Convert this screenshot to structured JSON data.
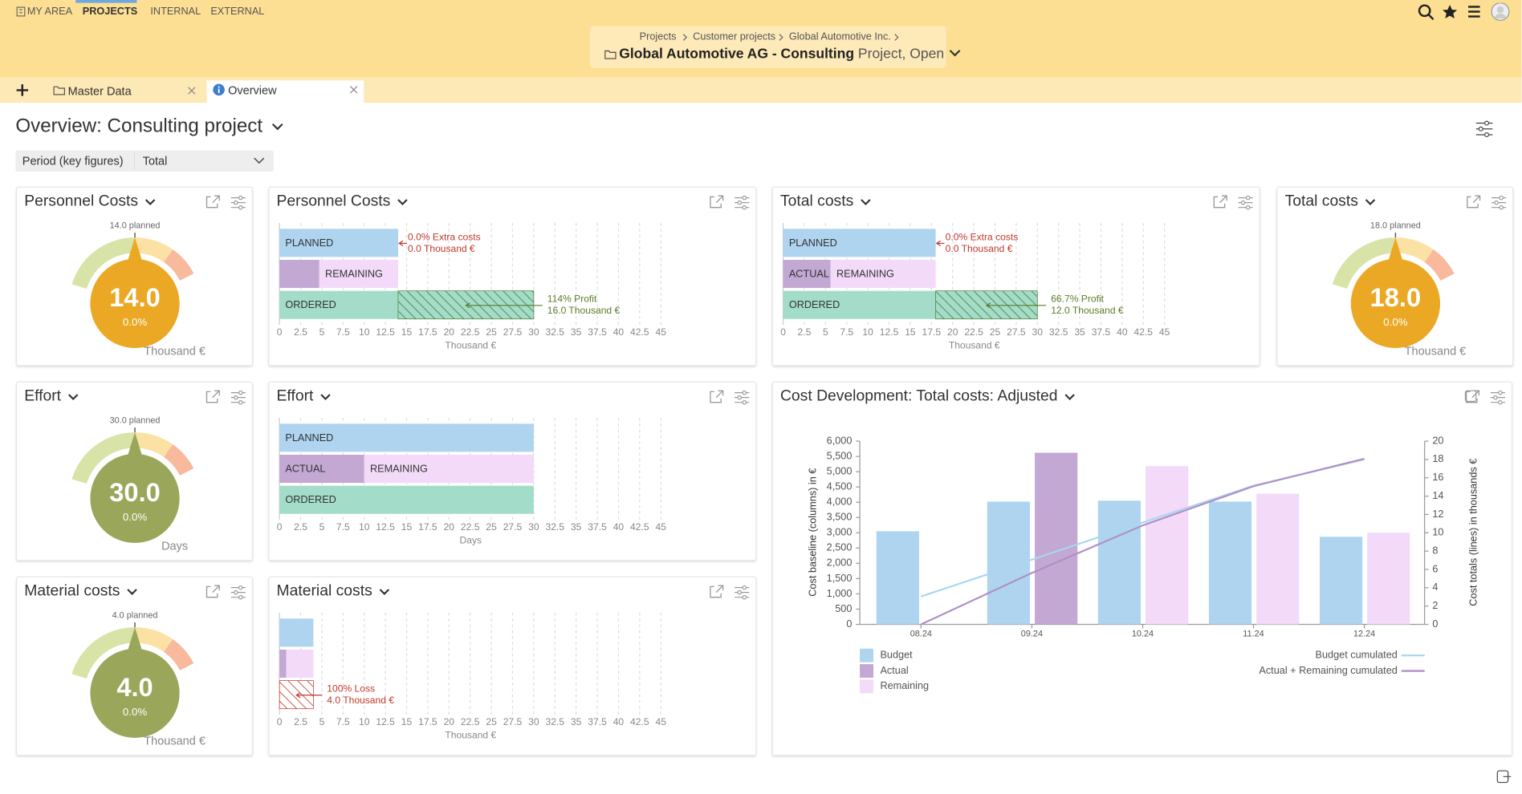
{
  "nav": {
    "items": [
      "MY AREA",
      "PROJECTS",
      "INTERNAL",
      "EXTERNAL"
    ],
    "active": 1
  },
  "breadcrumb": {
    "path": [
      "Projects",
      "Customer projects",
      "Global Automotive Inc."
    ],
    "title": "Global Automotive AG - Consulting",
    "status": "Project, Open"
  },
  "tabs": {
    "items": [
      "Master Data",
      "Overview"
    ],
    "active": 1
  },
  "page": {
    "title": "Overview: Consulting project",
    "filter_label": "Period (key figures)",
    "filter_value": "Total"
  },
  "gauges": [
    {
      "title": "Personnel Costs",
      "planned": 14,
      "planned_label": "14.0 planned",
      "value": 14,
      "value_label": "14.0",
      "percent_label": "0.0%",
      "unit": "Thousand €",
      "color": "#eba824"
    },
    {
      "title": "Total costs",
      "planned": 18,
      "planned_label": "18.0 planned",
      "value": 18,
      "value_label": "18.0",
      "percent_label": "0.0%",
      "unit": "Thousand €",
      "color": "#eba824"
    },
    {
      "title": "Effort",
      "planned": 30,
      "planned_label": "30.0 planned",
      "value": 30,
      "value_label": "30.0",
      "percent_label": "0.0%",
      "unit": "Days",
      "color": "#9aa65a"
    },
    {
      "title": "Material costs",
      "planned": 4,
      "planned_label": "4.0 planned",
      "value": 4,
      "value_label": "4.0",
      "percent_label": "0.0%",
      "unit": "Thousand €",
      "color": "#9aa65a"
    }
  ],
  "bar_widgets": [
    {
      "title": "Personnel Costs",
      "xlabel": "Thousand €",
      "xlim": [
        0,
        47.5
      ],
      "xticks": [
        0,
        2.5,
        5,
        7.5,
        10,
        12.5,
        15,
        17.5,
        20,
        22.5,
        25,
        27.5,
        30,
        32.5,
        35,
        37.5,
        40,
        42.5,
        45
      ],
      "rows": [
        {
          "segments": [
            {
              "label": "PLANNED",
              "value": 14,
              "color": "#aed4f0"
            }
          ],
          "note": [
            "0.0% Extra costs",
            "0.0 Thousand €"
          ],
          "note_color": "#c0392b"
        },
        {
          "segments": [
            {
              "value": 4.7,
              "color": "#c2a8d3"
            },
            {
              "label": "REMAINING",
              "value": 9.3,
              "color": "#f2daf8"
            }
          ]
        },
        {
          "segments": [
            {
              "label": "ORDERED",
              "value": 14,
              "color": "#a3dcc9"
            },
            {
              "value": 16,
              "color": "#a3dcc9",
              "hatch": "#4e7d3a"
            }
          ],
          "note": [
            "114% Profit",
            "16.0 Thousand €"
          ],
          "note_color": "#5a7d2a"
        }
      ]
    },
    {
      "title": "Total costs",
      "xlabel": "Thousand €",
      "xlim": [
        0,
        47.5
      ],
      "xticks": [
        0,
        2.5,
        5,
        7.5,
        10,
        12.5,
        15,
        17.5,
        20,
        22.5,
        25,
        27.5,
        30,
        32.5,
        35,
        37.5,
        40,
        42.5,
        45
      ],
      "rows": [
        {
          "segments": [
            {
              "label": "PLANNED",
              "value": 18,
              "color": "#aed4f0"
            }
          ],
          "note": [
            "0.0% Extra costs",
            "0.0 Thousand €"
          ],
          "note_color": "#c0392b"
        },
        {
          "segments": [
            {
              "label": "ACTUAL",
              "value": 5.6,
              "color": "#c2a8d3"
            },
            {
              "label": "REMAINING",
              "value": 12.4,
              "color": "#f2daf8"
            }
          ]
        },
        {
          "segments": [
            {
              "label": "ORDERED",
              "value": 18,
              "color": "#a3dcc9"
            },
            {
              "value": 12,
              "color": "#a3dcc9",
              "hatch": "#4e7d3a"
            }
          ],
          "note": [
            "66.7% Profit",
            "12.0 Thousand €"
          ],
          "note_color": "#5a7d2a"
        }
      ]
    },
    {
      "title": "Effort",
      "xlabel": "Days",
      "xlim": [
        0,
        47.5
      ],
      "xticks": [
        0,
        2.5,
        5,
        7.5,
        10,
        12.5,
        15,
        17.5,
        20,
        22.5,
        25,
        27.5,
        30,
        32.5,
        35,
        37.5,
        40,
        42.5,
        45
      ],
      "rows": [
        {
          "segments": [
            {
              "label": "PLANNED",
              "value": 30,
              "color": "#aed4f0"
            }
          ]
        },
        {
          "segments": [
            {
              "label": "ACTUAL",
              "value": 10,
              "color": "#c2a8d3"
            },
            {
              "label": "REMAINING",
              "value": 20,
              "color": "#f2daf8"
            }
          ]
        },
        {
          "segments": [
            {
              "label": "ORDERED",
              "value": 30,
              "color": "#a3dcc9"
            }
          ]
        }
      ]
    },
    {
      "title": "Material costs",
      "xlabel": "Thousand €",
      "xlim": [
        0,
        47.5
      ],
      "xticks": [
        0,
        2.5,
        5,
        7.5,
        10,
        12.5,
        15,
        17.5,
        20,
        22.5,
        25,
        27.5,
        30,
        32.5,
        35,
        37.5,
        40,
        42.5,
        45
      ],
      "rows": [
        {
          "segments": [
            {
              "value": 4,
              "color": "#aed4f0"
            }
          ]
        },
        {
          "segments": [
            {
              "value": 0.8,
              "color": "#c2a8d3"
            },
            {
              "value": 3.2,
              "color": "#f2daf8"
            }
          ]
        },
        {
          "segments": [
            {
              "value": 4,
              "color": "#ffffff",
              "hatch": "#c0392b"
            }
          ],
          "note": [
            "100% Loss",
            "4.0 Thousand €"
          ],
          "note_color": "#c0392b"
        }
      ]
    }
  ],
  "chart_data": {
    "type": "bar",
    "title": "Cost Development: Total costs: Adjusted",
    "categories": [
      "08.24",
      "09.24",
      "10.24",
      "11.24",
      "12.24"
    ],
    "ylabel": "Cost baseline (columns) in €",
    "y2label": "Cost totals (lines) in thousands €",
    "ylim": [
      0,
      6000
    ],
    "yticks": [
      0,
      500,
      {
        "value": 1000,
        "label": "1,000"
      },
      {
        "value": 1500,
        "label": "1,500"
      },
      {
        "value": 2000,
        "label": "2,000"
      },
      {
        "value": 2500,
        "label": "2,500"
      },
      {
        "value": 3000,
        "label": "3,000"
      },
      {
        "value": 3500,
        "label": "3,500"
      },
      {
        "value": 4000,
        "label": "4,000"
      },
      {
        "value": 4500,
        "label": "4,500"
      },
      {
        "value": 5000,
        "label": "5,000"
      },
      {
        "value": 5500,
        "label": "5,500"
      },
      {
        "value": 6000,
        "label": "6,000"
      }
    ],
    "y2lim": [
      0,
      20
    ],
    "y2ticks": [
      0,
      2,
      4,
      6,
      8,
      10,
      12,
      14,
      16,
      18,
      20
    ],
    "series": [
      {
        "name": "Budget",
        "color": "#aed4f0",
        "values": [
          3050,
          4020,
          4050,
          4020,
          2870
        ]
      },
      {
        "name": "Actual",
        "color": "#c2a8d3",
        "values": [
          null,
          5620,
          null,
          null,
          null
        ]
      },
      {
        "name": "Remaining",
        "color": "#f2daf8",
        "values": [
          null,
          null,
          5180,
          4280,
          3000
        ]
      },
      {
        "name": "Budget cumulated",
        "type": "line",
        "axis": "y2",
        "color": "#a9d8ec",
        "values": [
          3.05,
          7.07,
          11.12,
          15.14,
          18.01
        ]
      },
      {
        "name": "Actual + Remaining cumulated",
        "type": "line",
        "axis": "y2",
        "color": "#b08fc8",
        "values": [
          0,
          5.62,
          10.8,
          15.08,
          18.08
        ]
      }
    ]
  }
}
